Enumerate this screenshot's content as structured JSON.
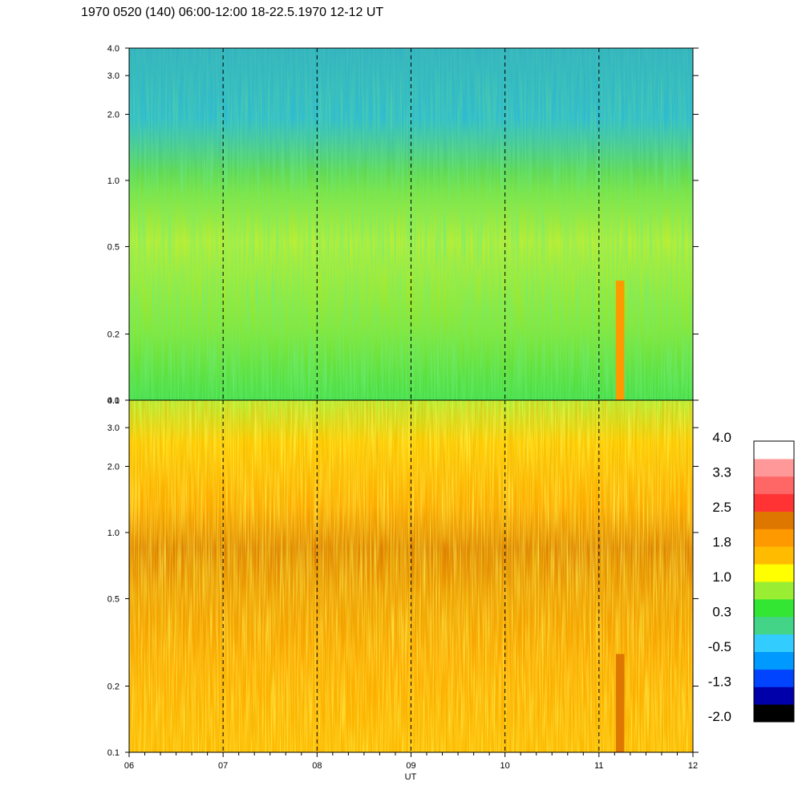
{
  "header": {
    "title": "1970 0520 (140) 06:00-12:00 18-22.5.1970  12-12 UT"
  },
  "colors": {
    "background": "#ffffff",
    "axes": "#000000",
    "vline_dash": "#000000"
  },
  "chart_data": {
    "type": "heatmap",
    "title": "1970 0520 (140) 06:00-12:00 18-22.5.1970  12-12 UT",
    "xlabel": "UT",
    "x_tick_labels": [
      "06",
      "07",
      "08",
      "09",
      "10",
      "11",
      "12"
    ],
    "x_ticks_hours": [
      6,
      7,
      8,
      9,
      10,
      11,
      12
    ],
    "xlim_hours": [
      6,
      12
    ],
    "dashed_lines_hours": [
      7,
      8,
      9,
      10,
      11
    ],
    "y_scale": "log",
    "ylim": [
      0.1,
      4.0
    ],
    "y_ticks": [
      0.1,
      0.2,
      0.5,
      1.0,
      2.0,
      3.0,
      4.0
    ],
    "y_tick_labels": [
      "0.1",
      "0.2",
      "0.5",
      "1.0",
      "2.0",
      "3.0",
      "4.0"
    ],
    "panels": [
      {
        "name": "upper",
        "dominant_levels": "0.3 to 1.0 (green to yellow), lower values near 2.0-4.0",
        "features": [
          {
            "x_hours": [
              11.18,
              11.27
            ],
            "y": [
              0.1,
              0.35
            ],
            "level": 1.8
          }
        ]
      },
      {
        "name": "lower",
        "dominant_levels": "1.0 to 1.8 (yellow to orange), band near 0.6-1.2",
        "features": [
          {
            "x_hours": [
              11.18,
              11.27
            ],
            "y": [
              0.1,
              0.28
            ],
            "level": 2.5
          }
        ]
      }
    ],
    "colorbar": {
      "tick_labels": [
        "4.0",
        "3.3",
        "2.5",
        "1.8",
        "1.0",
        "0.3",
        "-0.5",
        "-1.3",
        "-2.0"
      ],
      "levels_colors": [
        "#000000",
        "#0000aa",
        "#0044ff",
        "#0099ff",
        "#33ccff",
        "#44d488",
        "#33e633",
        "#99ee33",
        "#ffff00",
        "#ffbb00",
        "#ff9900",
        "#dd7700",
        "#ff3333",
        "#ff6666",
        "#ff9999",
        "#ffffff"
      ]
    }
  }
}
